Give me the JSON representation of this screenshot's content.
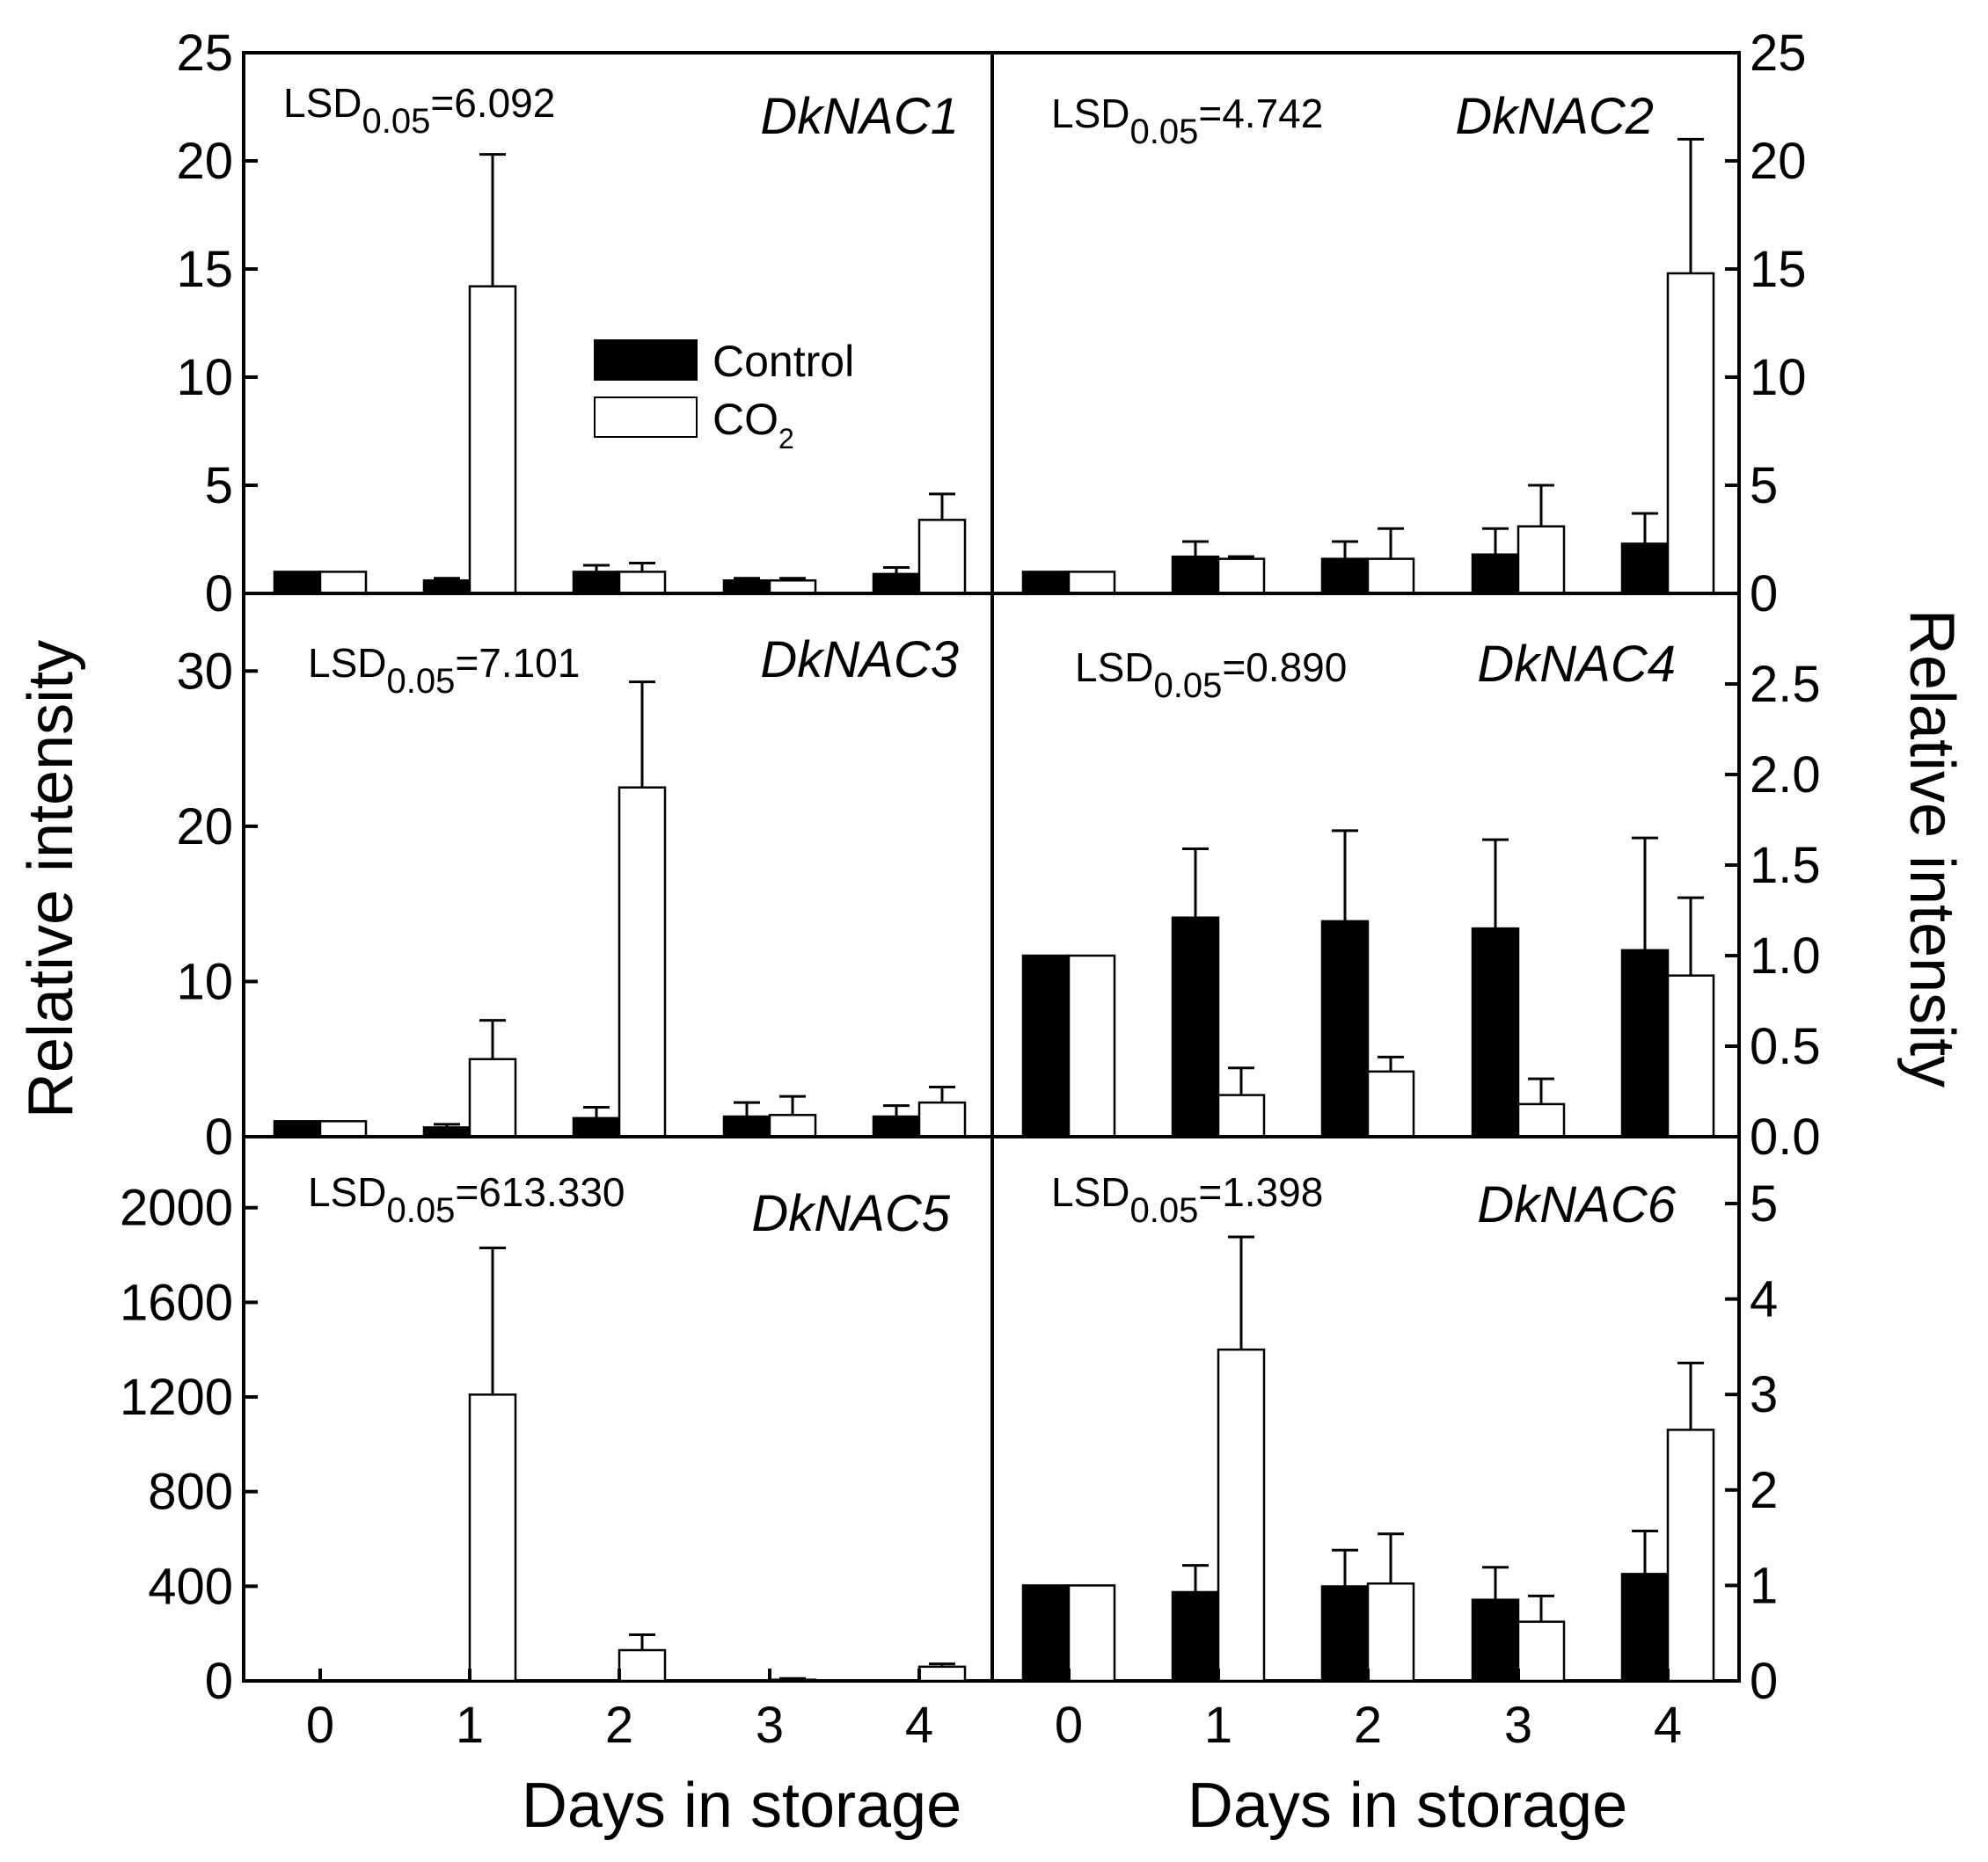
{
  "x_axis_title": "Days in storage",
  "y_axis_title_left": "Relative intensity",
  "y_axis_title_right": "Relative intensity",
  "legend": {
    "control_label": "Control",
    "co2_label_main": "CO",
    "co2_label_sub": "2"
  },
  "colors": {
    "control": "#000000",
    "co2": "#ffffff",
    "axis": "#000000"
  },
  "chart_data": [
    {
      "type": "bar",
      "gene": "DkNAC1",
      "lsd_prefix": "LSD",
      "lsd_sub": "0.05",
      "lsd_value": "=6.092",
      "categories": [
        "0",
        "1",
        "2",
        "3",
        "4"
      ],
      "ylim": [
        0,
        25
      ],
      "yticks": [
        0,
        5,
        10,
        15,
        20,
        25
      ],
      "ytick_labels": [
        "0",
        "5",
        "10",
        "15",
        "20",
        "25"
      ],
      "series": [
        {
          "name": "Control",
          "values": [
            1.0,
            0.6,
            1.0,
            0.6,
            0.9
          ],
          "errors": [
            0.0,
            0.1,
            0.3,
            0.1,
            0.3
          ]
        },
        {
          "name": "CO2",
          "values": [
            1.0,
            14.2,
            1.0,
            0.6,
            3.4
          ],
          "errors": [
            0.0,
            6.1,
            0.4,
            0.1,
            1.2
          ]
        }
      ]
    },
    {
      "type": "bar",
      "gene": "DkNAC2",
      "lsd_prefix": "LSD",
      "lsd_sub": "0.05",
      "lsd_value": "=4.742",
      "categories": [
        "0",
        "1",
        "2",
        "3",
        "4"
      ],
      "ylim": [
        0,
        25
      ],
      "yticks": [
        0,
        5,
        10,
        15,
        20,
        25
      ],
      "ytick_labels": [
        "0",
        "5",
        "10",
        "15",
        "20",
        "25"
      ],
      "series": [
        {
          "name": "Control",
          "values": [
            1.0,
            1.7,
            1.6,
            1.8,
            2.3
          ],
          "errors": [
            0.0,
            0.7,
            0.8,
            1.2,
            1.4
          ]
        },
        {
          "name": "CO2",
          "values": [
            1.0,
            1.6,
            1.6,
            3.1,
            14.8
          ],
          "errors": [
            0.0,
            0.1,
            1.4,
            1.9,
            6.2
          ]
        }
      ]
    },
    {
      "type": "bar",
      "gene": "DkNAC3",
      "lsd_prefix": "LSD",
      "lsd_sub": "0.05",
      "lsd_value": "=7.101",
      "categories": [
        "0",
        "1",
        "2",
        "3",
        "4"
      ],
      "ylim": [
        0,
        35
      ],
      "yticks": [
        0,
        10,
        20,
        30
      ],
      "ytick_labels": [
        "0",
        "10",
        "20",
        "30"
      ],
      "series": [
        {
          "name": "Control",
          "values": [
            1.0,
            0.6,
            1.2,
            1.3,
            1.3
          ],
          "errors": [
            0.0,
            0.2,
            0.7,
            0.9,
            0.7
          ]
        },
        {
          "name": "CO2",
          "values": [
            1.0,
            5.0,
            22.5,
            1.4,
            2.2
          ],
          "errors": [
            0.0,
            2.5,
            6.8,
            1.2,
            1.0
          ]
        }
      ]
    },
    {
      "type": "bar",
      "gene": "DkNAC4",
      "lsd_prefix": "LSD",
      "lsd_sub": "0.05",
      "lsd_value": "=0.890",
      "categories": [
        "0",
        "1",
        "2",
        "3",
        "4"
      ],
      "ylim": [
        0,
        3.0
      ],
      "yticks": [
        0,
        0.5,
        1.0,
        1.5,
        2.0,
        2.5
      ],
      "ytick_labels": [
        "0.0",
        "0.5",
        "1.0",
        "1.5",
        "2.0",
        "2.5"
      ],
      "series": [
        {
          "name": "Control",
          "values": [
            1.0,
            1.21,
            1.19,
            1.15,
            1.03
          ],
          "errors": [
            0.0,
            0.38,
            0.5,
            0.49,
            0.62
          ]
        },
        {
          "name": "CO2",
          "values": [
            1.0,
            0.23,
            0.36,
            0.18,
            0.89
          ],
          "errors": [
            0.0,
            0.15,
            0.08,
            0.14,
            0.43
          ]
        }
      ]
    },
    {
      "type": "bar",
      "gene": "DkNAC5",
      "lsd_prefix": "LSD",
      "lsd_sub": "0.05",
      "lsd_value": "=613.330",
      "categories": [
        "0",
        "1",
        "2",
        "3",
        "4"
      ],
      "ylim": [
        0,
        2300
      ],
      "yticks": [
        0,
        400,
        800,
        1200,
        1600,
        2000
      ],
      "ytick_labels": [
        "0",
        "400",
        "800",
        "1200",
        "1600",
        "2000"
      ],
      "series": [
        {
          "name": "Control",
          "values": [
            1.0,
            1.0,
            1.0,
            1.0,
            1.0
          ],
          "errors": [
            0,
            0,
            0,
            0,
            0
          ]
        },
        {
          "name": "CO2",
          "values": [
            1.0,
            1210,
            130,
            5,
            60
          ],
          "errors": [
            0,
            620,
            65,
            5,
            12
          ]
        }
      ]
    },
    {
      "type": "bar",
      "gene": "DkNAC6",
      "lsd_prefix": "LSD",
      "lsd_sub": "0.05",
      "lsd_value": "=1.398",
      "categories": [
        "0",
        "1",
        "2",
        "3",
        "4"
      ],
      "ylim": [
        0,
        5.7
      ],
      "yticks": [
        0,
        1,
        2,
        3,
        4,
        5
      ],
      "ytick_labels": [
        "0",
        "1",
        "2",
        "3",
        "4",
        "5"
      ],
      "series": [
        {
          "name": "Control",
          "values": [
            1.0,
            0.93,
            0.99,
            0.85,
            1.12
          ],
          "errors": [
            0.0,
            0.28,
            0.38,
            0.34,
            0.45
          ]
        },
        {
          "name": "CO2",
          "values": [
            1.0,
            3.47,
            1.02,
            0.62,
            2.63
          ],
          "errors": [
            0.0,
            1.18,
            0.52,
            0.27,
            0.7
          ]
        }
      ]
    }
  ]
}
